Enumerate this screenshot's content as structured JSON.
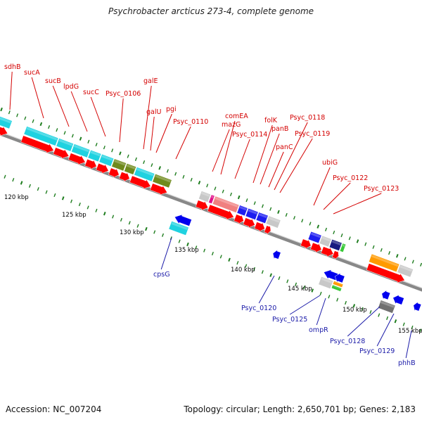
{
  "title": "Psychrobacter arcticus 273-4, complete genome",
  "footer": {
    "accession": "Accession: NC_007204",
    "summary": "Topology: circular; Length: 2,650,701 bp; Genes: 2,183"
  },
  "colors": {
    "background": "#ffffff",
    "backbone": "#888888",
    "plus_label": "#d40000",
    "minus_label": "#1a1aa8",
    "cds_plus": "#ff0000",
    "cds_minus": "#0000ee",
    "tick": "#1e7d1e",
    "cog_cyan": "#1fd2e0",
    "cog_olive": "#6f8a1c",
    "cog_blue": "#1c1cf0",
    "cog_salmon": "#f08080",
    "cog_magenta": "#e0108a",
    "cog_grey": "#c8c8c8",
    "cog_orange": "#ff9a00",
    "cog_green": "#38c838",
    "cog_navy": "#1a1a80"
  },
  "scale": {
    "unit": "kbp",
    "ticks": [
      {
        "kbp": 120,
        "label": "120 kbp"
      },
      {
        "kbp": 125,
        "label": "125 kbp"
      },
      {
        "kbp": 130,
        "label": "130 kbp"
      },
      {
        "kbp": 135,
        "label": "135 kbp"
      },
      {
        "kbp": 140,
        "label": "140 kbp"
      },
      {
        "kbp": 145,
        "label": "145 kbp"
      },
      {
        "kbp": 150,
        "label": "150 kbp"
      },
      {
        "kbp": 155,
        "label": "155 kbp"
      }
    ]
  },
  "plus_strand_genes": [
    "sdhB",
    "sucA",
    "sucB",
    "lpdG",
    "sucC",
    "Psyc_0106",
    "galE",
    "galU",
    "pgi",
    "Psyc_0110",
    "mazG",
    "comEA",
    "Psyc_0114",
    "folK",
    "panB",
    "panC",
    "Psyc_0118",
    "Psyc_0119",
    "ubiG",
    "Psyc_0122",
    "Psyc_0123"
  ],
  "minus_strand_genes": [
    "cpsG",
    "Psyc_0120",
    "Psyc_0125",
    "ompR",
    "Psyc_0128",
    "Psyc_0129",
    "phhB"
  ]
}
